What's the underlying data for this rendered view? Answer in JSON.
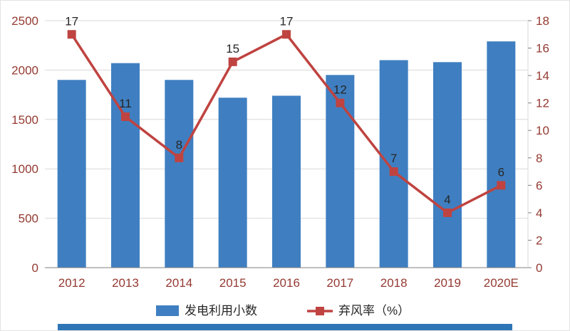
{
  "chart_data": {
    "type": "bar",
    "combo": true,
    "title": "",
    "categories": [
      "2012",
      "2013",
      "2014",
      "2015",
      "2016",
      "2017",
      "2018",
      "2019",
      "2020E"
    ],
    "series": [
      {
        "name": "发电利用小数",
        "type": "bar",
        "axis": "left",
        "values": [
          1900,
          2070,
          1900,
          1720,
          1740,
          1950,
          2100,
          2080,
          2290
        ]
      },
      {
        "name": "弃风率（%）",
        "type": "line",
        "axis": "right",
        "values": [
          17,
          11,
          8,
          15,
          17,
          12,
          7,
          4,
          6
        ],
        "data_labels": [
          "17",
          "11",
          "8",
          "15",
          "17",
          "12",
          "7",
          "4",
          "6"
        ]
      }
    ],
    "left_axis": {
      "min": 0,
      "max": 2500,
      "step": 500,
      "ticks": [
        "0",
        "500",
        "1000",
        "1500",
        "2000",
        "2500"
      ]
    },
    "right_axis": {
      "min": 0,
      "max": 18,
      "step": 2,
      "ticks": [
        "0",
        "2",
        "4",
        "6",
        "8",
        "10",
        "12",
        "14",
        "16",
        "18"
      ]
    },
    "grid": true,
    "legend_position": "bottom",
    "legend": [
      {
        "label": "发电利用小数",
        "marker": "bar"
      },
      {
        "label": "弃风率（%）",
        "marker": "line-square"
      }
    ]
  },
  "colors": {
    "bar": "#3f7fc1",
    "line": "#bf4340",
    "grid": "#d9d9d9",
    "axis_line": "#808080",
    "axis_label": "#943a32",
    "data_label": "#262626",
    "bottom_strip": "#2e75b6",
    "background": "#ffffff"
  }
}
